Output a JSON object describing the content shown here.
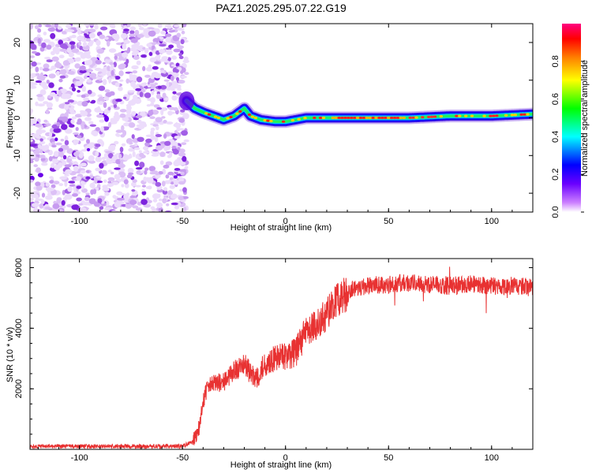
{
  "chart_data": [
    {
      "type": "heatmap",
      "title": "PAZ1.2025.295.07.22.G19",
      "xlabel": "Height of straight line (km)",
      "ylabel": "Frequency (Hz)",
      "xlim": [
        -124,
        120
      ],
      "ylim": [
        -25,
        25
      ],
      "xticks": [
        -100,
        -50,
        0,
        50,
        100
      ],
      "yticks": [
        20,
        10,
        0,
        -10,
        -20
      ],
      "xtick_labels": [
        "-100",
        "-50",
        "0",
        "50",
        "100"
      ],
      "ytick_labels": [
        "20",
        "10",
        "0",
        "-10",
        "-20"
      ],
      "noise_region_x": [
        -124,
        -48
      ],
      "ridge_x": [
        -48,
        -44,
        -40,
        -35,
        -30,
        -25,
        -20,
        -17,
        -12,
        -5,
        0,
        10,
        20,
        40,
        60,
        80,
        100,
        120
      ],
      "ridge_freq": [
        4.5,
        2.5,
        1.5,
        0.5,
        -0.5,
        0.5,
        2.5,
        0.5,
        -0.5,
        -1.0,
        -1.0,
        0.0,
        0.0,
        0.0,
        0.0,
        0.5,
        0.5,
        1.0
      ],
      "colorbar": {
        "label": "Normalized spectral amplitude",
        "range": [
          0,
          1
        ],
        "ticks": [
          0.0,
          0.2,
          0.4,
          0.6,
          0.8
        ],
        "tick_labels": [
          "0.0",
          "0.2",
          "0.4",
          "0.6",
          "0.8"
        ]
      }
    },
    {
      "type": "line",
      "xlabel": "Height of straight line (km)",
      "ylabel": "SNR (10 * v/v)",
      "xlim": [
        -124,
        120
      ],
      "ylim": [
        0,
        6300
      ],
      "xticks": [
        -100,
        -50,
        0,
        50,
        100
      ],
      "yticks": [
        2000,
        4000,
        6000
      ],
      "xtick_labels": [
        "-100",
        "-50",
        "0",
        "50",
        "100"
      ],
      "ytick_labels": [
        "2000",
        "4000",
        "6000"
      ],
      "series": [
        {
          "name": "SNR",
          "color": "#e83232",
          "x": [
            -124,
            -100,
            -80,
            -60,
            -50,
            -45,
            -42,
            -40,
            -38,
            -35,
            -30,
            -25,
            -20,
            -15,
            -10,
            -5,
            0,
            5,
            10,
            15,
            20,
            25,
            30,
            35,
            40,
            50,
            60,
            70,
            80,
            90,
            100,
            110,
            120
          ],
          "y": [
            100,
            100,
            100,
            100,
            100,
            250,
            700,
            1600,
            2000,
            2200,
            2200,
            2600,
            2800,
            2300,
            2800,
            3000,
            3100,
            3200,
            3900,
            4100,
            4500,
            4900,
            5200,
            5350,
            5400,
            5450,
            5500,
            5450,
            5400,
            5450,
            5400,
            5400,
            5350
          ]
        }
      ]
    }
  ]
}
